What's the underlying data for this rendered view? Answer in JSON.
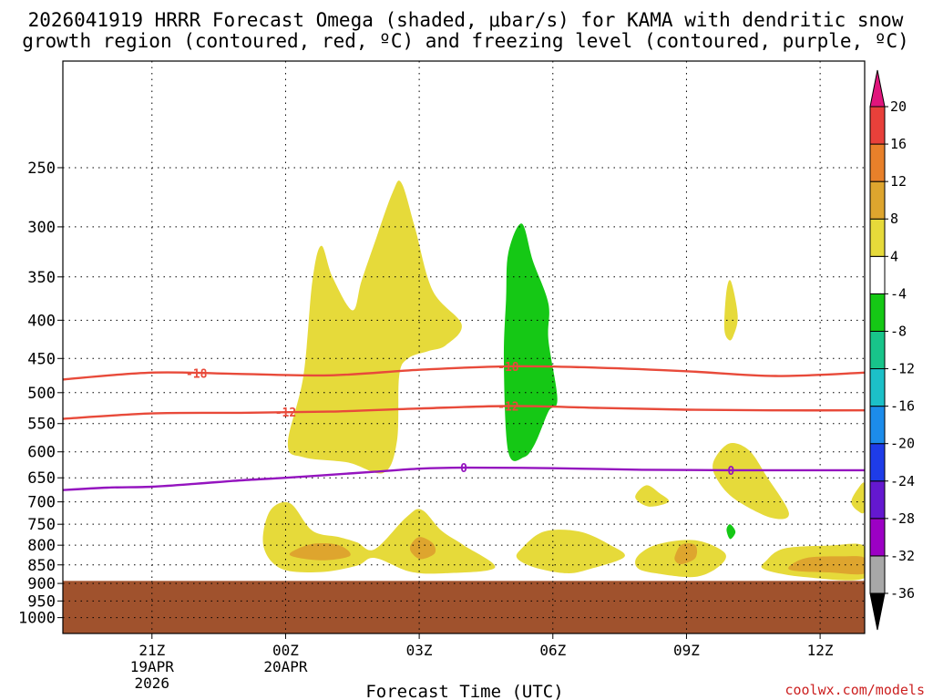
{
  "chart_data": {
    "type": "contour",
    "title_lines": [
      "2026041919 HRRR Forecast Omega (shaded, μbar/s) for KAMA with dendritic snow",
      "growth region (contoured, red, ºC) and freezing level (contoured, purple, ºC)"
    ],
    "xlabel": "Forecast Time (UTC)",
    "credit": "coolwx.com/models",
    "x_unit": "hours since 2026-04-19 19Z",
    "xlim": [
      0,
      18
    ],
    "x_ticks": [
      {
        "hour": 2,
        "label": "21Z",
        "sub": [
          "19APR",
          "2026"
        ]
      },
      {
        "hour": 5,
        "label": "00Z",
        "sub": [
          "20APR"
        ]
      },
      {
        "hour": 8,
        "label": "03Z",
        "sub": []
      },
      {
        "hour": 11,
        "label": "06Z",
        "sub": []
      },
      {
        "hour": 14,
        "label": "09Z",
        "sub": []
      },
      {
        "hour": 17,
        "label": "12Z",
        "sub": []
      }
    ],
    "y_unit": "hPa",
    "ylim": [
      1050,
      180
    ],
    "y_ticks": [
      250,
      300,
      350,
      400,
      450,
      500,
      550,
      600,
      650,
      700,
      750,
      800,
      850,
      900,
      950,
      1000
    ],
    "ground_pressure": 893,
    "omega_shading": [
      {
        "level": "4 to 8",
        "color": "#e6da3a",
        "regions": [
          [
            [
              5.05,
              585
            ],
            [
              5.4,
              475
            ],
            [
              5.6,
              355
            ],
            [
              5.8,
              318
            ],
            [
              6.05,
              350
            ],
            [
              6.5,
              388
            ],
            [
              6.7,
              355
            ],
            [
              7.0,
              315
            ],
            [
              7.4,
              270
            ],
            [
              7.6,
              262
            ],
            [
              7.9,
              300
            ],
            [
              8.3,
              365
            ],
            [
              8.95,
              405
            ],
            [
              8.6,
              432
            ],
            [
              8.2,
              440
            ],
            [
              7.75,
              450
            ],
            [
              7.55,
              475
            ],
            [
              7.5,
              580
            ],
            [
              7.2,
              640
            ],
            [
              6.4,
              620
            ],
            [
              5.4,
              610
            ]
          ],
          [
            [
              4.5,
              800
            ],
            [
              4.65,
              720
            ],
            [
              5.1,
              703
            ],
            [
              5.6,
              765
            ],
            [
              6.2,
              780
            ],
            [
              6.6,
              793
            ],
            [
              7.0,
              810
            ],
            [
              7.7,
              735
            ],
            [
              8.05,
              717
            ],
            [
              8.5,
              765
            ],
            [
              9.0,
              800
            ],
            [
              9.7,
              857
            ],
            [
              8.6,
              872
            ],
            [
              7.8,
              868
            ],
            [
              7.0,
              832
            ],
            [
              6.6,
              852
            ],
            [
              5.8,
              869
            ],
            [
              4.9,
              860
            ]
          ],
          [
            [
              10.3,
              808
            ],
            [
              10.8,
              767
            ],
            [
              11.6,
              767
            ],
            [
              12.3,
              800
            ],
            [
              12.6,
              830
            ],
            [
              11.8,
              862
            ],
            [
              11.3,
              872
            ],
            [
              10.6,
              857
            ],
            [
              10.2,
              833
            ]
          ],
          [
            [
              12.9,
              828
            ],
            [
              13.35,
              798
            ],
            [
              14.2,
              788
            ],
            [
              14.85,
              818
            ],
            [
              14.75,
              852
            ],
            [
              14.2,
              882
            ],
            [
              13.3,
              872
            ],
            [
              12.9,
              858
            ]
          ],
          [
            [
              15.8,
              838
            ],
            [
              16.2,
              808
            ],
            [
              17.2,
              801
            ],
            [
              18,
              803
            ],
            [
              18,
              885
            ],
            [
              16.7,
              883
            ],
            [
              15.75,
              862
            ]
          ],
          [
            [
              14.6,
              620
            ],
            [
              14.95,
              585
            ],
            [
              15.4,
              597
            ],
            [
              15.8,
              647
            ],
            [
              16.3,
              725
            ],
            [
              15.9,
              735
            ],
            [
              15.1,
              695
            ],
            [
              14.7,
              655
            ]
          ],
          [
            [
              12.85,
              690
            ],
            [
              13.1,
              665
            ],
            [
              13.4,
              682
            ],
            [
              13.6,
              700
            ],
            [
              13.15,
              710
            ]
          ],
          [
            [
              14.85,
              410
            ],
            [
              14.9,
              365
            ],
            [
              15.0,
              355
            ],
            [
              15.15,
              395
            ],
            [
              15.05,
              420
            ],
            [
              14.95,
              425
            ]
          ],
          [
            [
              17.7,
              700
            ],
            [
              17.85,
              672
            ],
            [
              18,
              662
            ],
            [
              18,
              720
            ],
            [
              17.85,
              720
            ]
          ]
        ]
      },
      {
        "level": "8 to 12",
        "color": "#dea52e",
        "regions": [
          [
            [
              5.1,
              820
            ],
            [
              5.6,
              797
            ],
            [
              6.2,
              800
            ],
            [
              6.45,
              826
            ],
            [
              5.9,
              838
            ],
            [
              5.3,
              832
            ]
          ],
          [
            [
              7.8,
              802
            ],
            [
              8.0,
              780
            ],
            [
              8.3,
              795
            ],
            [
              8.35,
              820
            ],
            [
              8.05,
              835
            ],
            [
              7.85,
              822
            ]
          ],
          [
            [
              13.75,
              824
            ],
            [
              13.9,
              798
            ],
            [
              14.2,
              800
            ],
            [
              14.2,
              832
            ],
            [
              13.9,
              848
            ],
            [
              13.75,
              840
            ]
          ],
          [
            [
              16.3,
              855
            ],
            [
              16.7,
              832
            ],
            [
              17.5,
              828
            ],
            [
              18,
              832
            ],
            [
              18,
              873
            ],
            [
              17.2,
              870
            ],
            [
              16.45,
              866
            ]
          ]
        ]
      },
      {
        "level": "-8 to -4",
        "color": "#15c815",
        "regions": [
          [
            [
              9.9,
              455
            ],
            [
              9.95,
              375
            ],
            [
              10.0,
              325
            ],
            [
              10.3,
              297
            ],
            [
              10.55,
              333
            ],
            [
              10.9,
              380
            ],
            [
              10.9,
              425
            ],
            [
              11.1,
              510
            ],
            [
              10.9,
              530
            ],
            [
              10.6,
              585
            ],
            [
              10.35,
              610
            ],
            [
              10.0,
              600
            ]
          ],
          [
            [
              14.9,
              763
            ],
            [
              14.98,
              750
            ],
            [
              15.1,
              768
            ],
            [
              14.98,
              785
            ]
          ]
        ]
      }
    ],
    "dendritic_isotherms": [
      {
        "label": "-18",
        "color": "#e84a3a",
        "points": [
          [
            0,
            480
          ],
          [
            2,
            470
          ],
          [
            4,
            472
          ],
          [
            6,
            474
          ],
          [
            8,
            466
          ],
          [
            10,
            461
          ],
          [
            12,
            463
          ],
          [
            14,
            468
          ],
          [
            16,
            475
          ],
          [
            18,
            470
          ]
        ],
        "label_hours": [
          3,
          10
        ]
      },
      {
        "label": "-12",
        "color": "#e84a3a",
        "points": [
          [
            0,
            542
          ],
          [
            2,
            533
          ],
          [
            4,
            532
          ],
          [
            6,
            530
          ],
          [
            8,
            525
          ],
          [
            10,
            521
          ],
          [
            12,
            524
          ],
          [
            14,
            527
          ],
          [
            16,
            528
          ],
          [
            18,
            528
          ]
        ],
        "label_hours": [
          5,
          10
        ]
      }
    ],
    "freezing_level": {
      "label": "0",
      "color": "#9414bf",
      "points": [
        [
          0,
          675
        ],
        [
          1,
          670
        ],
        [
          2,
          668
        ],
        [
          3,
          662
        ],
        [
          4,
          655
        ],
        [
          5,
          650
        ],
        [
          6,
          644
        ],
        [
          7,
          638
        ],
        [
          8,
          632
        ],
        [
          9,
          630
        ],
        [
          11,
          631
        ],
        [
          13,
          634
        ],
        [
          15,
          635
        ],
        [
          17,
          635
        ],
        [
          18,
          635
        ]
      ],
      "label_hours": [
        9,
        15
      ]
    },
    "colorbar": {
      "unit": "μbar/s",
      "bins": [
        {
          "color": "#000000",
          "label": "-36"
        },
        {
          "color": "#a8a8a8",
          "label": "-32"
        },
        {
          "color": "#9c00c4",
          "label": "-28"
        },
        {
          "color": "#6418d0",
          "label": "-24"
        },
        {
          "color": "#1e3ce8",
          "label": "-20"
        },
        {
          "color": "#1c8cea",
          "label": "-16"
        },
        {
          "color": "#1cc0c8",
          "label": "-12"
        },
        {
          "color": "#18c48a",
          "label": "-8"
        },
        {
          "color": "#15c815",
          "label": "-4"
        },
        {
          "color": "#ffffff",
          "label": "4"
        },
        {
          "color": "#e6da3a",
          "label": "8"
        },
        {
          "color": "#dea52e",
          "label": "12"
        },
        {
          "color": "#e8802a",
          "label": "16"
        },
        {
          "color": "#e8403a",
          "label": "20"
        },
        {
          "color": "#e0157c",
          "label": ""
        }
      ]
    },
    "colors": {
      "ground": "#a0522d",
      "frame": "#000000",
      "grid": "#000000"
    }
  }
}
